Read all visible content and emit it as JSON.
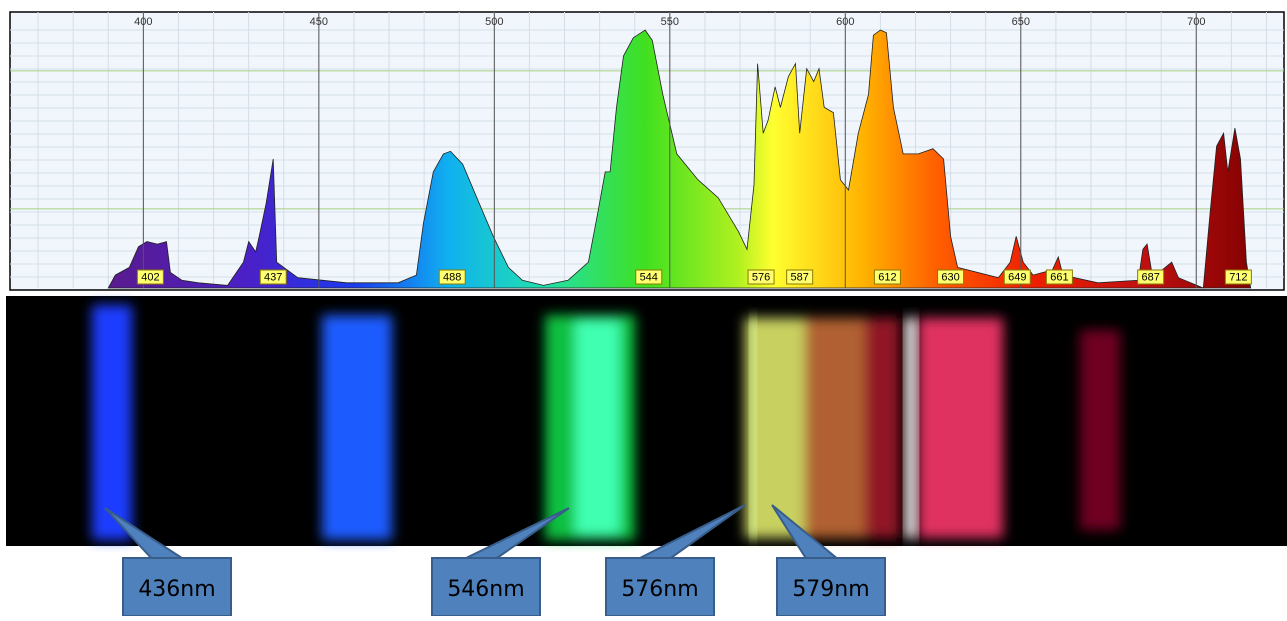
{
  "chart_data": {
    "type": "area",
    "x": [
      390,
      392,
      396,
      398.6,
      401,
      404,
      406.6,
      407.7,
      411,
      415.7,
      424,
      428.5,
      430,
      432,
      433,
      435,
      437,
      438,
      444,
      458,
      472.6,
      477.8,
      479.8,
      482.6,
      485.5,
      487.5,
      491,
      495,
      499.7,
      504,
      508,
      514,
      521,
      526.8,
      529.6,
      531.6,
      533,
      534.8,
      536.8,
      539.6,
      543,
      545,
      548,
      552,
      558,
      563.8,
      569.5,
      572,
      574,
      575,
      576.6,
      578,
      580,
      581.5,
      583.8,
      585.8,
      587,
      589,
      591,
      592.5,
      594,
      596.6,
      598.6,
      600.9,
      603.7,
      606.6,
      608,
      610,
      611.7,
      613.7,
      616.5,
      620.8,
      625,
      628,
      630,
      632,
      643.6,
      647,
      648.7,
      650.7,
      653.5,
      659,
      660.7,
      662,
      672,
      683.5,
      684.8,
      686,
      687.6,
      693,
      694.9,
      702,
      704,
      705.8,
      707.8,
      709,
      711,
      712.6,
      714.3,
      715.5
    ],
    "values": [
      0,
      5,
      8,
      16,
      18,
      17,
      18,
      6,
      3,
      2,
      1,
      10,
      18,
      14,
      20,
      33,
      50,
      10,
      4,
      2,
      2,
      5,
      25,
      45,
      52,
      53,
      48,
      35,
      20,
      8,
      3,
      1,
      3,
      10,
      30,
      45,
      45,
      70,
      90,
      97,
      100,
      96,
      75,
      52,
      42,
      35,
      22,
      15,
      40,
      87,
      60,
      65,
      78,
      70,
      82,
      87,
      60,
      85,
      80,
      85,
      70,
      68,
      42,
      38,
      60,
      75,
      98,
      100,
      99,
      70,
      52,
      52,
      54,
      50,
      20,
      8,
      4,
      10,
      20,
      10,
      5,
      7,
      12,
      5,
      2,
      3,
      15,
      17,
      4,
      10,
      4,
      0,
      30,
      55,
      60,
      45,
      62,
      50,
      10,
      0
    ],
    "xlim": [
      362,
      725
    ],
    "ylim": [
      0,
      107
    ],
    "xticks": [
      400,
      450,
      500,
      550,
      600,
      650,
      700
    ],
    "grid": true,
    "peak_labels": [
      402,
      437,
      488,
      544,
      576,
      587,
      612,
      630,
      649,
      661,
      687,
      712
    ],
    "callouts": [
      "436nm",
      "546nm",
      "576nm",
      "579nm"
    ]
  }
}
